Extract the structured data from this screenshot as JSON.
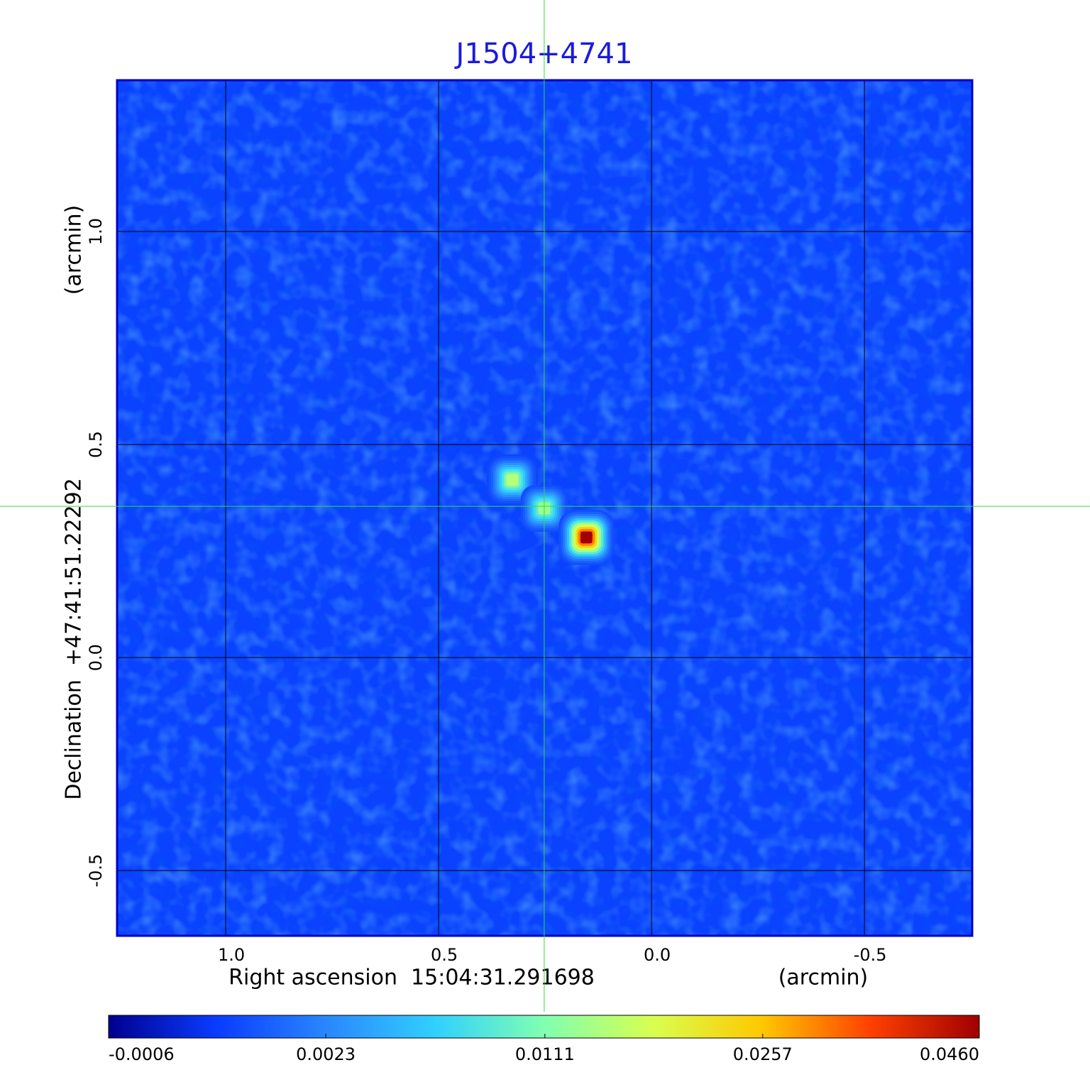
{
  "chart_data": {
    "type": "image",
    "title": "J1504+4741",
    "x_label": "Right ascension  15:04:31.291698",
    "x_unit": "(arcmin)",
    "y_label": "Declination  +47:41:51.22292",
    "y_unit": "(arcmin)",
    "xlim": [
      1.255,
      -0.753
    ],
    "ylim": [
      -0.653,
      1.355
    ],
    "xticks": [
      {
        "value": 1,
        "label": "1.0"
      },
      0.5,
      {
        "value": 0,
        "label": "0.0"
      },
      -0.5
    ],
    "yticks": [
      {
        "value": 1,
        "label": "1.0"
      },
      0.5,
      {
        "value": 0,
        "label": "0.0"
      },
      -0.5
    ],
    "grid": true,
    "crosshair": {
      "x": 0.252,
      "y": 0.355,
      "color": "#33dd33"
    },
    "sources": {
      "x": [
        0.327,
        0.252,
        0.153
      ],
      "y": [
        0.417,
        0.35,
        0.282
      ],
      "values": [
        0.015,
        0.013,
        0.046
      ]
    },
    "colorbar": {
      "scale": "sqrt",
      "ticks": [
        -0.0006,
        0.0023,
        0.0111,
        0.0257,
        {
          "value": 0.046,
          "label": "0.0460"
        }
      ],
      "colormap": [
        "#00008f",
        "#0a3cff",
        "#2a86ff",
        "#30d0ff",
        "#80ffb0",
        "#d8ff50",
        "#ffc800",
        "#ff4000",
        "#a00000"
      ]
    }
  }
}
